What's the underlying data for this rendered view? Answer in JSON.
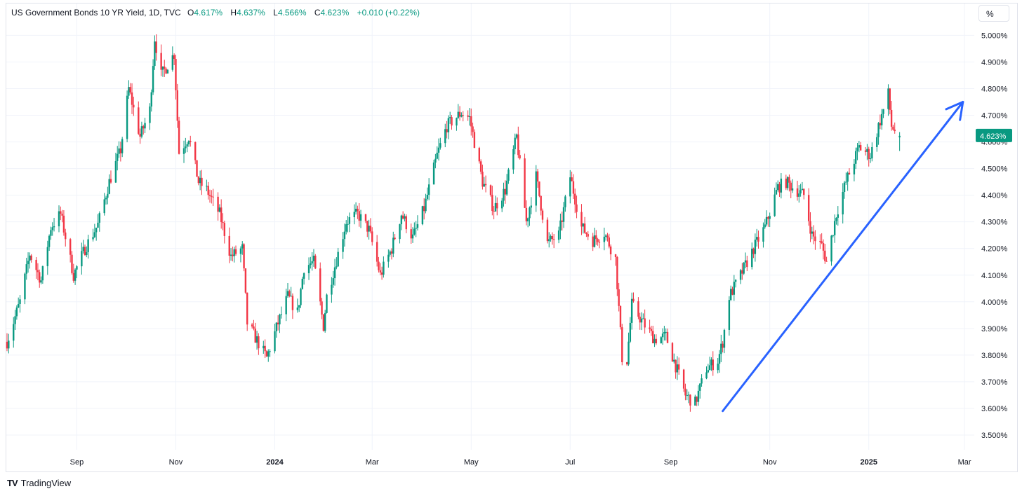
{
  "header": {
    "symbol": "US Government Bonds 10 YR Yield, 1D, TVC",
    "open_label": "O",
    "open": "4.617%",
    "high_label": "H",
    "high": "4.637%",
    "low_label": "L",
    "low": "4.566%",
    "close_label": "C",
    "close": "4.623%",
    "change": "+0.010 (+0.22%)"
  },
  "scale_button": "%",
  "brand": {
    "logo": "TV",
    "name": "TradingView"
  },
  "colors": {
    "up": "#089981",
    "down": "#f23645",
    "arrow": "#2962ff",
    "grid": "#f0f3fa"
  },
  "chart_data": {
    "type": "candlestick",
    "title": "US Government Bonds 10 YR Yield, 1D, TVC",
    "xlabel": "",
    "ylabel": "",
    "ylim": [
      3.45,
      5.08
    ],
    "xlim": [
      "2023-07-20",
      "2025-03-07"
    ],
    "grid": true,
    "y_ticks": [
      "3.500%",
      "3.600%",
      "3.700%",
      "3.800%",
      "3.900%",
      "4.000%",
      "4.100%",
      "4.200%",
      "4.300%",
      "4.400%",
      "4.500%",
      "4.600%",
      "4.700%",
      "4.800%",
      "4.900%",
      "5.000%"
    ],
    "x_ticks": [
      {
        "label": "Sep",
        "date": "2023-09-01",
        "bold": false
      },
      {
        "label": "Nov",
        "date": "2023-11-01",
        "bold": false
      },
      {
        "label": "2024",
        "date": "2024-01-01",
        "bold": true
      },
      {
        "label": "Mar",
        "date": "2024-03-01",
        "bold": false
      },
      {
        "label": "May",
        "date": "2024-05-01",
        "bold": false
      },
      {
        "label": "Jul",
        "date": "2024-07-01",
        "bold": false
      },
      {
        "label": "Sep",
        "date": "2024-09-01",
        "bold": false
      },
      {
        "label": "Nov",
        "date": "2024-11-01",
        "bold": false
      },
      {
        "label": "2025",
        "date": "2025-01-01",
        "bold": true
      },
      {
        "label": "Mar",
        "date": "2025-03-01",
        "bold": false
      }
    ],
    "price_path": [
      [
        "2023-07-20",
        3.85
      ],
      [
        "2023-07-28",
        4.0
      ],
      [
        "2023-08-03",
        4.18
      ],
      [
        "2023-08-10",
        4.08
      ],
      [
        "2023-08-16",
        4.28
      ],
      [
        "2023-08-22",
        4.33
      ],
      [
        "2023-08-30",
        4.1
      ],
      [
        "2023-09-06",
        4.2
      ],
      [
        "2023-09-14",
        4.29
      ],
      [
        "2023-09-21",
        4.45
      ],
      [
        "2023-09-28",
        4.57
      ],
      [
        "2023-10-03",
        4.8
      ],
      [
        "2023-10-10",
        4.62
      ],
      [
        "2023-10-16",
        4.72
      ],
      [
        "2023-10-19",
        4.99
      ],
      [
        "2023-10-23",
        4.85
      ],
      [
        "2023-10-31",
        4.93
      ],
      [
        "2023-11-03",
        4.56
      ],
      [
        "2023-11-09",
        4.62
      ],
      [
        "2023-11-15",
        4.45
      ],
      [
        "2023-11-20",
        4.42
      ],
      [
        "2023-11-28",
        4.33
      ],
      [
        "2023-12-05",
        4.17
      ],
      [
        "2023-12-12",
        4.2
      ],
      [
        "2023-12-15",
        3.92
      ],
      [
        "2023-12-27",
        3.79
      ],
      [
        "2024-01-03",
        3.92
      ],
      [
        "2024-01-09",
        4.02
      ],
      [
        "2024-01-15",
        3.96
      ],
      [
        "2024-01-19",
        4.13
      ],
      [
        "2024-01-25",
        4.15
      ],
      [
        "2024-01-31",
        3.91
      ],
      [
        "2024-02-02",
        4.02
      ],
      [
        "2024-02-09",
        4.18
      ],
      [
        "2024-02-14",
        4.3
      ],
      [
        "2024-02-21",
        4.33
      ],
      [
        "2024-02-28",
        4.27
      ],
      [
        "2024-03-06",
        4.1
      ],
      [
        "2024-03-13",
        4.2
      ],
      [
        "2024-03-19",
        4.33
      ],
      [
        "2024-03-26",
        4.24
      ],
      [
        "2024-04-02",
        4.35
      ],
      [
        "2024-04-10",
        4.55
      ],
      [
        "2024-04-16",
        4.66
      ],
      [
        "2024-04-25",
        4.71
      ],
      [
        "2024-04-30",
        4.69
      ],
      [
        "2024-05-08",
        4.45
      ],
      [
        "2024-05-15",
        4.35
      ],
      [
        "2024-05-22",
        4.42
      ],
      [
        "2024-05-29",
        4.62
      ],
      [
        "2024-06-04",
        4.3
      ],
      [
        "2024-06-10",
        4.47
      ],
      [
        "2024-06-17",
        4.22
      ],
      [
        "2024-06-24",
        4.25
      ],
      [
        "2024-07-01",
        4.47
      ],
      [
        "2024-07-08",
        4.28
      ],
      [
        "2024-07-15",
        4.23
      ],
      [
        "2024-07-22",
        4.26
      ],
      [
        "2024-07-29",
        4.16
      ],
      [
        "2024-08-02",
        3.79
      ],
      [
        "2024-08-05",
        3.78
      ],
      [
        "2024-08-08",
        3.99
      ],
      [
        "2024-08-15",
        3.92
      ],
      [
        "2024-08-22",
        3.86
      ],
      [
        "2024-08-29",
        3.87
      ],
      [
        "2024-09-04",
        3.76
      ],
      [
        "2024-09-10",
        3.65
      ],
      [
        "2024-09-16",
        3.62
      ],
      [
        "2024-09-23",
        3.75
      ],
      [
        "2024-09-30",
        3.78
      ],
      [
        "2024-10-03",
        3.85
      ],
      [
        "2024-10-07",
        4.02
      ],
      [
        "2024-10-14",
        4.1
      ],
      [
        "2024-10-22",
        4.2
      ],
      [
        "2024-10-29",
        4.28
      ],
      [
        "2024-11-06",
        4.43
      ],
      [
        "2024-11-11",
        4.45
      ],
      [
        "2024-11-15",
        4.43
      ],
      [
        "2024-11-22",
        4.4
      ],
      [
        "2024-11-27",
        4.25
      ],
      [
        "2024-12-03",
        4.21
      ],
      [
        "2024-12-06",
        4.15
      ],
      [
        "2024-12-12",
        4.33
      ],
      [
        "2024-12-18",
        4.45
      ],
      [
        "2024-12-26",
        4.58
      ],
      [
        "2025-01-02",
        4.55
      ],
      [
        "2025-01-08",
        4.68
      ],
      [
        "2025-01-13",
        4.78
      ],
      [
        "2025-01-15",
        4.66
      ],
      [
        "2025-01-20",
        4.62
      ]
    ],
    "trend_arrow": {
      "from": [
        "2024-10-03",
        3.59
      ],
      "to": [
        "2025-02-28",
        4.75
      ]
    }
  }
}
